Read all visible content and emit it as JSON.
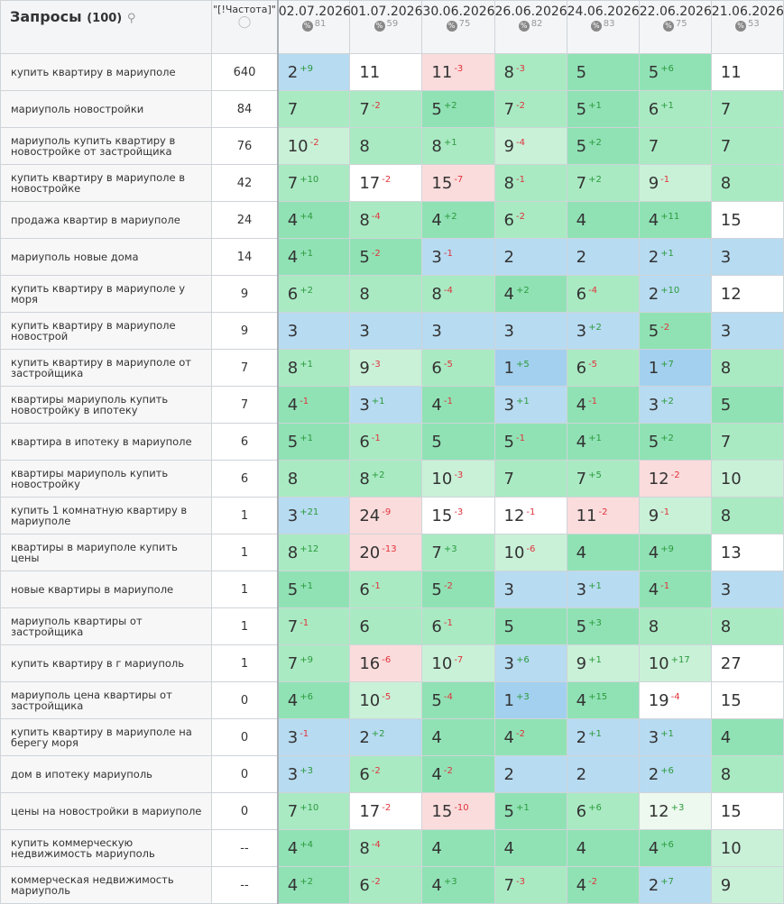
{
  "header": {
    "title": "Запросы",
    "count": "(100)",
    "freq_label": "\"[!Частота]\"",
    "dates": [
      {
        "date": "02.07.2026",
        "pct": 81
      },
      {
        "date": "01.07.2026",
        "pct": 59
      },
      {
        "date": "30.06.2026",
        "pct": 75
      },
      {
        "date": "26.06.2026",
        "pct": 82
      },
      {
        "date": "24.06.2026",
        "pct": 83
      },
      {
        "date": "22.06.2026",
        "pct": 75
      },
      {
        "date": "21.06.2026",
        "pct": 53
      }
    ]
  },
  "rows": [
    {
      "query": "купить квартиру в мариуполе",
      "freq": 640,
      "cells": [
        {
          "v": 2,
          "d": "+9",
          "bg": "#b7dbf1"
        },
        {
          "v": 11,
          "bg": "#ffffff"
        },
        {
          "v": 11,
          "d": "-3",
          "bg": "#fbdcdc"
        },
        {
          "v": 8,
          "d": "-3",
          "bg": "#a9eac3"
        },
        {
          "v": 5,
          "bg": "#90e2b5"
        },
        {
          "v": 5,
          "d": "+6",
          "bg": "#90e2b5"
        },
        {
          "v": 11,
          "bg": "#ffffff"
        }
      ]
    },
    {
      "query": "мариуполь новостройки",
      "freq": 84,
      "cells": [
        {
          "v": 7,
          "bg": "#a9eac3"
        },
        {
          "v": 7,
          "d": "-2",
          "bg": "#a9eac3"
        },
        {
          "v": 5,
          "d": "+2",
          "bg": "#90e2b5"
        },
        {
          "v": 7,
          "d": "-2",
          "bg": "#a9eac3"
        },
        {
          "v": 5,
          "d": "+1",
          "bg": "#90e2b5"
        },
        {
          "v": 6,
          "d": "+1",
          "bg": "#a9eac3"
        },
        {
          "v": 7,
          "bg": "#a9eac3"
        }
      ]
    },
    {
      "query": "мариуполь купить квартиру в новостройке от застройщика",
      "freq": 76,
      "cells": [
        {
          "v": 10,
          "d": "-2",
          "bg": "#c9f1d8"
        },
        {
          "v": 8,
          "bg": "#a9eac3"
        },
        {
          "v": 8,
          "d": "+1",
          "bg": "#a9eac3"
        },
        {
          "v": 9,
          "d": "-4",
          "bg": "#c9f1d8"
        },
        {
          "v": 5,
          "d": "+2",
          "bg": "#90e2b5"
        },
        {
          "v": 7,
          "bg": "#a9eac3"
        },
        {
          "v": 7,
          "bg": "#a9eac3"
        }
      ]
    },
    {
      "query": "купить квартиру в мариуполе в новостройке",
      "freq": 42,
      "cells": [
        {
          "v": 7,
          "d": "+10",
          "bg": "#a9eac3"
        },
        {
          "v": 17,
          "d": "-2",
          "bg": "#ffffff"
        },
        {
          "v": 15,
          "d": "-7",
          "bg": "#fbdcdc"
        },
        {
          "v": 8,
          "d": "-1",
          "bg": "#a9eac3"
        },
        {
          "v": 7,
          "d": "+2",
          "bg": "#a9eac3"
        },
        {
          "v": 9,
          "d": "-1",
          "bg": "#c9f1d8"
        },
        {
          "v": 8,
          "bg": "#a9eac3"
        }
      ]
    },
    {
      "query": "продажа квартир в мариуполе",
      "freq": 24,
      "cells": [
        {
          "v": 4,
          "d": "+4",
          "bg": "#90e2b5"
        },
        {
          "v": 8,
          "d": "-4",
          "bg": "#a9eac3"
        },
        {
          "v": 4,
          "d": "+2",
          "bg": "#90e2b5"
        },
        {
          "v": 6,
          "d": "-2",
          "bg": "#a9eac3"
        },
        {
          "v": 4,
          "bg": "#90e2b5"
        },
        {
          "v": 4,
          "d": "+11",
          "bg": "#90e2b5"
        },
        {
          "v": 15,
          "bg": "#ffffff"
        }
      ]
    },
    {
      "query": "мариуполь новые дома",
      "freq": 14,
      "cells": [
        {
          "v": 4,
          "d": "+1",
          "bg": "#90e2b5"
        },
        {
          "v": 5,
          "d": "-2",
          "bg": "#90e2b5"
        },
        {
          "v": 3,
          "d": "-1",
          "bg": "#b7dbf1"
        },
        {
          "v": 2,
          "bg": "#b7dbf1"
        },
        {
          "v": 2,
          "bg": "#b7dbf1"
        },
        {
          "v": 2,
          "d": "+1",
          "bg": "#b7dbf1"
        },
        {
          "v": 3,
          "bg": "#b7dbf1"
        }
      ]
    },
    {
      "query": "купить квартиру в мариуполе у моря",
      "freq": 9,
      "cells": [
        {
          "v": 6,
          "d": "+2",
          "bg": "#a9eac3"
        },
        {
          "v": 8,
          "bg": "#a9eac3"
        },
        {
          "v": 8,
          "d": "-4",
          "bg": "#a9eac3"
        },
        {
          "v": 4,
          "d": "+2",
          "bg": "#90e2b5"
        },
        {
          "v": 6,
          "d": "-4",
          "bg": "#a9eac3"
        },
        {
          "v": 2,
          "d": "+10",
          "bg": "#b7dbf1"
        },
        {
          "v": 12,
          "bg": "#ffffff"
        }
      ]
    },
    {
      "query": "купить квартиру в мариуполе новострой",
      "freq": 9,
      "cells": [
        {
          "v": 3,
          "bg": "#b7dbf1"
        },
        {
          "v": 3,
          "bg": "#b7dbf1"
        },
        {
          "v": 3,
          "bg": "#b7dbf1"
        },
        {
          "v": 3,
          "bg": "#b7dbf1"
        },
        {
          "v": 3,
          "d": "+2",
          "bg": "#b7dbf1"
        },
        {
          "v": 5,
          "d": "-2",
          "bg": "#90e2b5"
        },
        {
          "v": 3,
          "bg": "#b7dbf1"
        }
      ]
    },
    {
      "query": "купить квартиру в мариуполе от застройщика",
      "freq": 7,
      "cells": [
        {
          "v": 8,
          "d": "+1",
          "bg": "#a9eac3"
        },
        {
          "v": 9,
          "d": "-3",
          "bg": "#c9f1d8"
        },
        {
          "v": 6,
          "d": "-5",
          "bg": "#a9eac3"
        },
        {
          "v": 1,
          "d": "+5",
          "bg": "#a3d0ee"
        },
        {
          "v": 6,
          "d": "-5",
          "bg": "#a9eac3"
        },
        {
          "v": 1,
          "d": "+7",
          "bg": "#a3d0ee"
        },
        {
          "v": 8,
          "bg": "#a9eac3"
        }
      ]
    },
    {
      "query": "квартиры мариуполь купить новостройку в ипотеку",
      "freq": 7,
      "cells": [
        {
          "v": 4,
          "d": "-1",
          "bg": "#90e2b5"
        },
        {
          "v": 3,
          "d": "+1",
          "bg": "#b7dbf1"
        },
        {
          "v": 4,
          "d": "-1",
          "bg": "#90e2b5"
        },
        {
          "v": 3,
          "d": "+1",
          "bg": "#b7dbf1"
        },
        {
          "v": 4,
          "d": "-1",
          "bg": "#90e2b5"
        },
        {
          "v": 3,
          "d": "+2",
          "bg": "#b7dbf1"
        },
        {
          "v": 5,
          "bg": "#90e2b5"
        }
      ]
    },
    {
      "query": "квартира в ипотеку в мариуполе",
      "freq": 6,
      "cells": [
        {
          "v": 5,
          "d": "+1",
          "bg": "#90e2b5"
        },
        {
          "v": 6,
          "d": "-1",
          "bg": "#a9eac3"
        },
        {
          "v": 5,
          "bg": "#90e2b5"
        },
        {
          "v": 5,
          "d": "-1",
          "bg": "#90e2b5"
        },
        {
          "v": 4,
          "d": "+1",
          "bg": "#90e2b5"
        },
        {
          "v": 5,
          "d": "+2",
          "bg": "#90e2b5"
        },
        {
          "v": 7,
          "bg": "#a9eac3"
        }
      ]
    },
    {
      "query": "квартиры мариуполь купить новостройку",
      "freq": 6,
      "cells": [
        {
          "v": 8,
          "bg": "#a9eac3"
        },
        {
          "v": 8,
          "d": "+2",
          "bg": "#a9eac3"
        },
        {
          "v": 10,
          "d": "-3",
          "bg": "#c9f1d8"
        },
        {
          "v": 7,
          "bg": "#a9eac3"
        },
        {
          "v": 7,
          "d": "+5",
          "bg": "#a9eac3"
        },
        {
          "v": 12,
          "d": "-2",
          "bg": "#fbdcdc"
        },
        {
          "v": 10,
          "bg": "#c9f1d8"
        }
      ]
    },
    {
      "query": "купить 1 комнатную квартиру в мариуполе",
      "freq": 1,
      "cells": [
        {
          "v": 3,
          "d": "+21",
          "bg": "#b7dbf1"
        },
        {
          "v": 24,
          "d": "-9",
          "bg": "#fbdcdc"
        },
        {
          "v": 15,
          "d": "-3",
          "bg": "#ffffff"
        },
        {
          "v": 12,
          "d": "-1",
          "bg": "#ffffff"
        },
        {
          "v": 11,
          "d": "-2",
          "bg": "#fbdcdc"
        },
        {
          "v": 9,
          "d": "-1",
          "bg": "#c9f1d8"
        },
        {
          "v": 8,
          "bg": "#a9eac3"
        }
      ]
    },
    {
      "query": "квартиры в мариуполе купить цены",
      "freq": 1,
      "cells": [
        {
          "v": 8,
          "d": "+12",
          "bg": "#a9eac3"
        },
        {
          "v": 20,
          "d": "-13",
          "bg": "#fbdcdc"
        },
        {
          "v": 7,
          "d": "+3",
          "bg": "#a9eac3"
        },
        {
          "v": 10,
          "d": "-6",
          "bg": "#c9f1d8"
        },
        {
          "v": 4,
          "bg": "#90e2b5"
        },
        {
          "v": 4,
          "d": "+9",
          "bg": "#90e2b5"
        },
        {
          "v": 13,
          "bg": "#ffffff"
        }
      ]
    },
    {
      "query": "новые квартиры в мариуполе",
      "freq": 1,
      "cells": [
        {
          "v": 5,
          "d": "+1",
          "bg": "#90e2b5"
        },
        {
          "v": 6,
          "d": "-1",
          "bg": "#a9eac3"
        },
        {
          "v": 5,
          "d": "-2",
          "bg": "#90e2b5"
        },
        {
          "v": 3,
          "bg": "#b7dbf1"
        },
        {
          "v": 3,
          "d": "+1",
          "bg": "#b7dbf1"
        },
        {
          "v": 4,
          "d": "-1",
          "bg": "#90e2b5"
        },
        {
          "v": 3,
          "bg": "#b7dbf1"
        }
      ]
    },
    {
      "query": "мариуполь квартиры от застройщика",
      "freq": 1,
      "cells": [
        {
          "v": 7,
          "d": "-1",
          "bg": "#a9eac3"
        },
        {
          "v": 6,
          "bg": "#a9eac3"
        },
        {
          "v": 6,
          "d": "-1",
          "bg": "#a9eac3"
        },
        {
          "v": 5,
          "bg": "#90e2b5"
        },
        {
          "v": 5,
          "d": "+3",
          "bg": "#90e2b5"
        },
        {
          "v": 8,
          "bg": "#a9eac3"
        },
        {
          "v": 8,
          "bg": "#a9eac3"
        }
      ]
    },
    {
      "query": "купить квартиру в г мариуполь",
      "freq": 1,
      "cells": [
        {
          "v": 7,
          "d": "+9",
          "bg": "#a9eac3"
        },
        {
          "v": 16,
          "d": "-6",
          "bg": "#fbdcdc"
        },
        {
          "v": 10,
          "d": "-7",
          "bg": "#c9f1d8"
        },
        {
          "v": 3,
          "d": "+6",
          "bg": "#b7dbf1"
        },
        {
          "v": 9,
          "d": "+1",
          "bg": "#c9f1d8"
        },
        {
          "v": 10,
          "d": "+17",
          "bg": "#c9f1d8"
        },
        {
          "v": 27,
          "bg": "#ffffff"
        }
      ]
    },
    {
      "query": "мариуполь цена квартиры от застройщика",
      "freq": 0,
      "cells": [
        {
          "v": 4,
          "d": "+6",
          "bg": "#90e2b5"
        },
        {
          "v": 10,
          "d": "-5",
          "bg": "#c9f1d8"
        },
        {
          "v": 5,
          "d": "-4",
          "bg": "#90e2b5"
        },
        {
          "v": 1,
          "d": "+3",
          "bg": "#a3d0ee"
        },
        {
          "v": 4,
          "d": "+15",
          "bg": "#90e2b5"
        },
        {
          "v": 19,
          "d": "-4",
          "bg": "#ffffff"
        },
        {
          "v": 15,
          "bg": "#ffffff"
        }
      ]
    },
    {
      "query": "купить квартиру в мариуполе на берегу моря",
      "freq": 0,
      "cells": [
        {
          "v": 3,
          "d": "-1",
          "bg": "#b7dbf1"
        },
        {
          "v": 2,
          "d": "+2",
          "bg": "#b7dbf1"
        },
        {
          "v": 4,
          "bg": "#90e2b5"
        },
        {
          "v": 4,
          "d": "-2",
          "bg": "#90e2b5"
        },
        {
          "v": 2,
          "d": "+1",
          "bg": "#b7dbf1"
        },
        {
          "v": 3,
          "d": "+1",
          "bg": "#b7dbf1"
        },
        {
          "v": 4,
          "bg": "#90e2b5"
        }
      ]
    },
    {
      "query": "дом в ипотеку мариуполь",
      "freq": 0,
      "cells": [
        {
          "v": 3,
          "d": "+3",
          "bg": "#b7dbf1"
        },
        {
          "v": 6,
          "d": "-2",
          "bg": "#a9eac3"
        },
        {
          "v": 4,
          "d": "-2",
          "bg": "#90e2b5"
        },
        {
          "v": 2,
          "bg": "#b7dbf1"
        },
        {
          "v": 2,
          "bg": "#b7dbf1"
        },
        {
          "v": 2,
          "d": "+6",
          "bg": "#b7dbf1"
        },
        {
          "v": 8,
          "bg": "#a9eac3"
        }
      ]
    },
    {
      "query": "цены на новостройки в мариуполе",
      "freq": 0,
      "cells": [
        {
          "v": 7,
          "d": "+10",
          "bg": "#a9eac3"
        },
        {
          "v": 17,
          "d": "-2",
          "bg": "#ffffff"
        },
        {
          "v": 15,
          "d": "-10",
          "bg": "#fbdcdc"
        },
        {
          "v": 5,
          "d": "+1",
          "bg": "#90e2b5"
        },
        {
          "v": 6,
          "d": "+6",
          "bg": "#a9eac3"
        },
        {
          "v": 12,
          "d": "+3",
          "bg": "#edf9ee"
        },
        {
          "v": 15,
          "bg": "#ffffff"
        }
      ]
    },
    {
      "query": "купить коммерческую недвижимость мариуполь",
      "freq": "--",
      "cells": [
        {
          "v": 4,
          "d": "+4",
          "bg": "#90e2b5"
        },
        {
          "v": 8,
          "d": "-4",
          "bg": "#a9eac3"
        },
        {
          "v": 4,
          "bg": "#90e2b5"
        },
        {
          "v": 4,
          "bg": "#90e2b5"
        },
        {
          "v": 4,
          "bg": "#90e2b5"
        },
        {
          "v": 4,
          "d": "+6",
          "bg": "#90e2b5"
        },
        {
          "v": 10,
          "bg": "#c9f1d8"
        }
      ]
    },
    {
      "query": "коммерческая недвижимость мариуполь",
      "freq": "--",
      "cells": [
        {
          "v": 4,
          "d": "+2",
          "bg": "#90e2b5"
        },
        {
          "v": 6,
          "d": "-2",
          "bg": "#a9eac3"
        },
        {
          "v": 4,
          "d": "+3",
          "bg": "#90e2b5"
        },
        {
          "v": 7,
          "d": "-3",
          "bg": "#a9eac3"
        },
        {
          "v": 4,
          "d": "-2",
          "bg": "#90e2b5"
        },
        {
          "v": 2,
          "d": "+7",
          "bg": "#b7dbf1"
        },
        {
          "v": 9,
          "bg": "#c9f1d8"
        }
      ]
    }
  ]
}
